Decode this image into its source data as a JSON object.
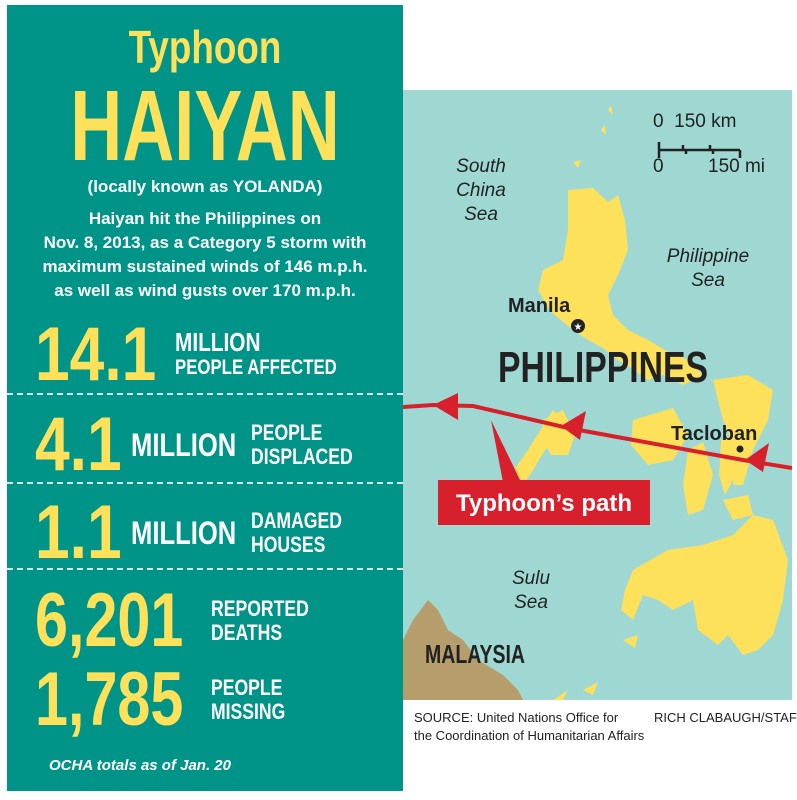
{
  "header": {
    "title_small": "Typhoon",
    "title_large": "HAIYAN",
    "subtitle": "(locally known as YOLANDA)",
    "description": [
      "Haiyan hit the Philippines on",
      "Nov. 8, 2013, as a Category 5 storm with",
      "maximum sustained winds of 146 m.p.h.",
      "as well as wind gusts over 170 m.p.h."
    ]
  },
  "stats": [
    {
      "number": "14.1",
      "unit": "MILLION",
      "label": [
        "PEOPLE AFFECTED"
      ]
    },
    {
      "number": "4.1",
      "unit": "MILLION",
      "label": [
        "PEOPLE",
        "DISPLACED"
      ]
    },
    {
      "number": "1.1",
      "unit": "MILLION",
      "label": [
        "DAMAGED",
        "HOUSES"
      ]
    },
    {
      "number": "6,201",
      "unit": "",
      "label": [
        "REPORTED",
        "DEATHS"
      ]
    },
    {
      "number": "1,785",
      "unit": "",
      "label": [
        "PEOPLE",
        "MISSING"
      ]
    }
  ],
  "note": "OCHA totals as of Jan. 20",
  "map": {
    "scale": {
      "km_label": "0  150 km",
      "zero": "0",
      "mi_label": "150 mi"
    },
    "labels": {
      "south_china_sea": [
        "South",
        "China",
        "Sea"
      ],
      "philippine_sea": [
        "Philippine",
        "Sea"
      ],
      "sulu_sea": [
        "Sulu",
        "Sea"
      ],
      "manila": "Manila",
      "country": "PHILIPPINES",
      "tacloban": "Tacloban",
      "malaysia": "MALAYSIA"
    },
    "callout": "Typhoon’s path",
    "colors": {
      "sea": "#9fd8d3",
      "land": "#fde15a",
      "malaysia": "#b59e6c",
      "path": "#d7202c",
      "panel": "#009488"
    }
  },
  "footer": {
    "source": [
      "SOURCE: United Nations Office for",
      "the Coordination of Humanitarian Affairs"
    ],
    "credit": "RICH CLABAUGH/STAFF"
  }
}
